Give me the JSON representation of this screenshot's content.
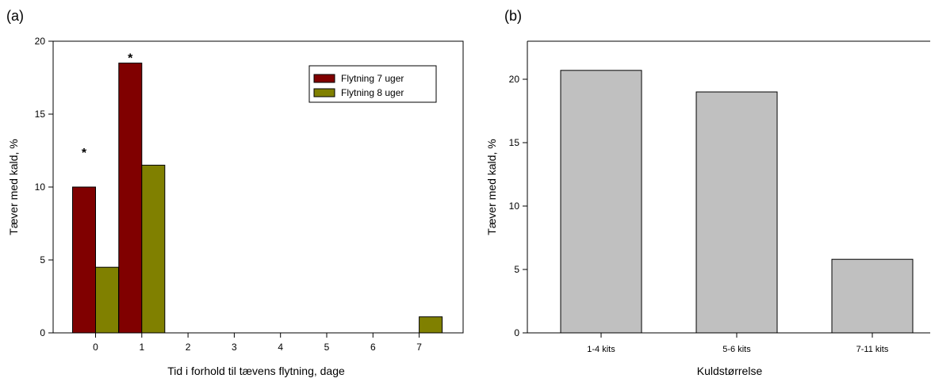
{
  "chart_data": [
    {
      "type": "bar",
      "panel_label": "(a)",
      "xlabel": "Tid i forhold til tævens flytning, dage",
      "ylabel": "Tæver med kald, %",
      "ylim": [
        0,
        20
      ],
      "yticks": [
        0,
        5,
        10,
        15,
        20
      ],
      "categories": [
        "0",
        "1",
        "2",
        "3",
        "4",
        "5",
        "6",
        "7"
      ],
      "series": [
        {
          "name": "Flytning 7 uger",
          "color": "#800000",
          "values": [
            10,
            18.5,
            0,
            0,
            0,
            0,
            0,
            0
          ]
        },
        {
          "name": "Flytning 8 uger",
          "color": "#808000",
          "values": [
            4.5,
            11.5,
            0,
            0,
            0,
            0,
            0,
            1.1
          ]
        }
      ],
      "annotations": [
        {
          "text": "*",
          "category": "0",
          "y": 12.5
        },
        {
          "text": "*",
          "category": "1",
          "y": 19
        }
      ],
      "legend": "top-right",
      "grid": false
    },
    {
      "type": "bar",
      "panel_label": "(b)",
      "xlabel": "Kuldstørrelse",
      "ylabel": "Tæver med kald, %",
      "ylim": [
        0,
        23
      ],
      "yticks": [
        0,
        5,
        10,
        15,
        20
      ],
      "categories": [
        "1-4 kits",
        "5-6 kits",
        "7-11 kits"
      ],
      "values": [
        20.7,
        19,
        5.8
      ],
      "color": "#c0c0c0",
      "grid": false
    }
  ]
}
